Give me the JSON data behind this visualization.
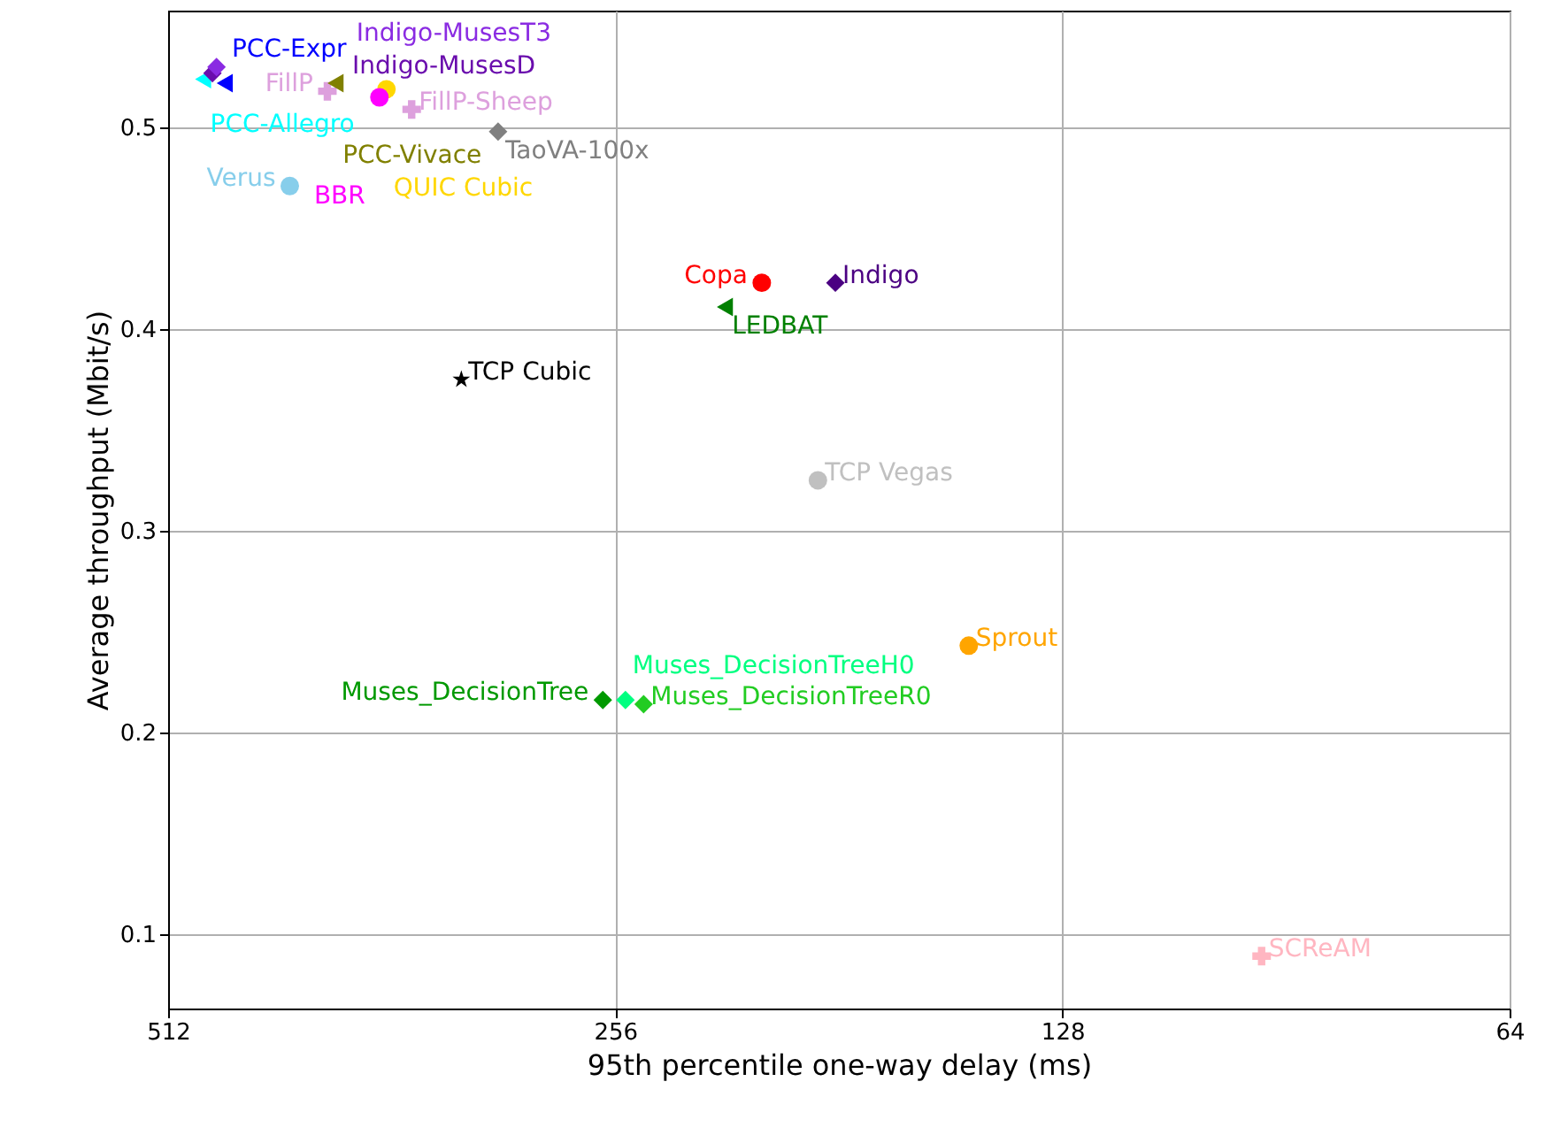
{
  "chart_data": {
    "type": "scatter",
    "xlabel": "95th percentile one-way delay (ms)",
    "ylabel": "Average throughput (Mbit/s)",
    "log": "x",
    "xlim": [
      512,
      64
    ],
    "xticks": [
      512,
      256,
      128,
      64
    ],
    "ylim": [
      0.063,
      0.558
    ],
    "yticks": [
      0.1,
      0.2,
      0.3,
      0.4,
      0.5
    ],
    "grid": true,
    "series": [
      {
        "name": "PCC-Allegro",
        "color": "#00ffff",
        "marker": "triangle",
        "x": [
          485
        ],
        "values": [
          0.524
        ]
      },
      {
        "name": "PCC-Expr",
        "color": "#0000ff",
        "marker": "triangle",
        "x": [
          469
        ],
        "values": [
          0.522
        ]
      },
      {
        "name": "Indigo-MusesD",
        "color": "#6a0dad",
        "marker": "diamond",
        "x": [
          478
        ],
        "values": [
          0.527
        ]
      },
      {
        "name": "Indigo-MusesT3",
        "color": "#8a2be2",
        "marker": "diamond",
        "x": [
          475
        ],
        "values": [
          0.53
        ]
      },
      {
        "name": "FillP",
        "color": "#dda0dd",
        "marker": "cross",
        "x": [
          400
        ],
        "values": [
          0.518
        ]
      },
      {
        "name": "PCC-Vivace",
        "color": "#808000",
        "marker": "triangle",
        "x": [
          395
        ],
        "values": [
          0.522
        ]
      },
      {
        "name": "QUIC Cubic",
        "color": "#ffd700",
        "marker": "circle",
        "x": [
          365
        ],
        "values": [
          0.519
        ]
      },
      {
        "name": "BBR",
        "color": "#ff00ff",
        "marker": "circle",
        "x": [
          369
        ],
        "values": [
          0.515
        ]
      },
      {
        "name": "FillP-Sheep",
        "color": "#dda0dd",
        "marker": "cross",
        "x": [
          351
        ],
        "values": [
          0.509
        ]
      },
      {
        "name": "TaoVA-100x",
        "color": "#808080",
        "marker": "diamond",
        "x": [
          307
        ],
        "values": [
          0.498
        ]
      },
      {
        "name": "Verus",
        "color": "#87ceeb",
        "marker": "circle",
        "x": [
          424
        ],
        "values": [
          0.471
        ]
      },
      {
        "name": "TCP Cubic",
        "color": "#000000",
        "marker": "star",
        "x": [
          325
        ],
        "values": [
          0.375
        ]
      },
      {
        "name": "Copa",
        "color": "#ff0000",
        "marker": "circle",
        "x": [
          204
        ],
        "values": [
          0.423
        ]
      },
      {
        "name": "Indigo",
        "color": "#4b0082",
        "marker": "diamond",
        "x": [
          182
        ],
        "values": [
          0.423
        ]
      },
      {
        "name": "LEDBAT",
        "color": "#008000",
        "marker": "triangle",
        "x": [
          216
        ],
        "values": [
          0.411
        ]
      },
      {
        "name": "TCP Vegas",
        "color": "#c0c0c0",
        "marker": "circle",
        "x": [
          187
        ],
        "values": [
          0.325
        ]
      },
      {
        "name": "Sprout",
        "color": "#ffa500",
        "marker": "circle",
        "x": [
          148
        ],
        "values": [
          0.243
        ]
      },
      {
        "name": "SCReAM",
        "color": "#ffb6c1",
        "marker": "cross",
        "x": [
          94
        ],
        "values": [
          0.089
        ]
      },
      {
        "name": "Muses_DecisionTree",
        "color": "#009900",
        "marker": "diamond",
        "x": [
          261
        ],
        "values": [
          0.216
        ]
      },
      {
        "name": "Muses_DecisionTreeH0",
        "color": "#00ff80",
        "marker": "diamond",
        "x": [
          252
        ],
        "values": [
          0.216
        ]
      },
      {
        "name": "Muses_DecisionTreeR0",
        "color": "#22cc22",
        "marker": "diamond",
        "x": [
          245
        ],
        "values": [
          0.214
        ]
      }
    ]
  }
}
